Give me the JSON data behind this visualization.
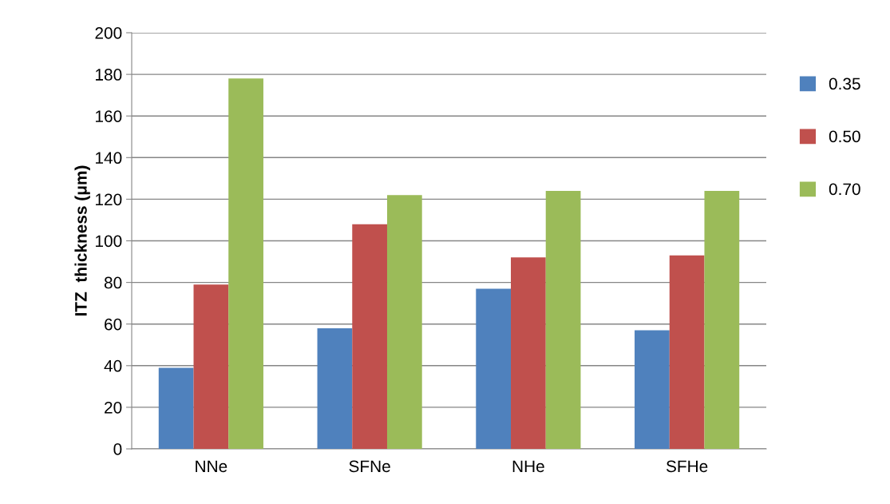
{
  "chart_data": {
    "type": "bar",
    "ylabel": "ITZ  thickness (μm)",
    "categories": [
      "NNe",
      "SFNe",
      "NHe",
      "SFHe"
    ],
    "series": [
      {
        "name": "0.35",
        "color": "#4f81bd",
        "values": [
          39,
          58,
          77,
          57
        ]
      },
      {
        "name": "0.50",
        "color": "#c0504d",
        "values": [
          79,
          108,
          92,
          93
        ]
      },
      {
        "name": "0.70",
        "color": "#9bbb59",
        "values": [
          178,
          122,
          124,
          124
        ]
      }
    ],
    "ylim": [
      0,
      200
    ],
    "yticks": [
      0,
      20,
      40,
      60,
      80,
      100,
      120,
      140,
      160,
      180,
      200
    ],
    "grid": "y",
    "legend": "right"
  }
}
